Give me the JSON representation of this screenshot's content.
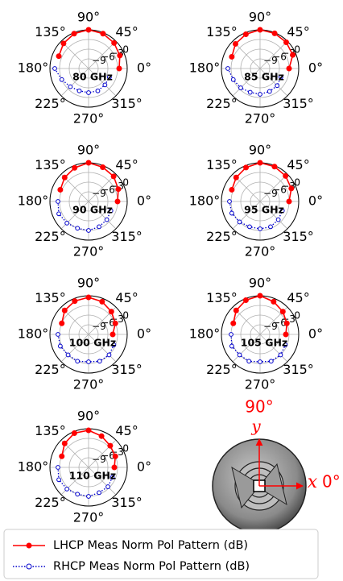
{
  "chart_data": {
    "type": "polar",
    "rlim": [
      -12,
      0
    ],
    "rticks": [
      {
        "value": -9,
        "label": "−9"
      },
      {
        "value": -6,
        "label": "−6"
      },
      {
        "value": -3,
        "label": "−3"
      },
      0
    ],
    "thetaticks": [
      {
        "value": 0,
        "label": "0°"
      },
      {
        "value": 45,
        "label": "45°"
      },
      {
        "value": 90,
        "label": "90°"
      },
      {
        "value": 135,
        "label": "135°"
      },
      {
        "value": 180,
        "label": "180°"
      },
      {
        "value": 225,
        "label": "225°"
      },
      {
        "value": 270,
        "label": "270°"
      },
      {
        "value": 315,
        "label": "315°"
      }
    ],
    "grid": true,
    "series": [
      {
        "name": "LHCP Meas Norm Pol Pattern (dB)",
        "color": "#ff0000",
        "linestyle": "solid",
        "marker": "filled",
        "theta": [
          0,
          22.5,
          45,
          67.5,
          90,
          112.5,
          135,
          157.5
        ]
      },
      {
        "name": "RHCP Meas Norm Pol Pattern (dB)",
        "color": "#0000cc",
        "linestyle": "dotted",
        "marker": "hollow",
        "theta": [
          180,
          202.5,
          225,
          247.5,
          270,
          292.5,
          315,
          337.5
        ]
      }
    ],
    "panels": [
      {
        "label": "80 GHz",
        "series": [
          {
            "values": [
              -2.5,
              -1.5,
              -0.8,
              -0.3,
              0,
              -0.3,
              -1,
              -2
            ]
          },
          {
            "values": [
              -1.5,
              -3,
              -4,
              -4.5,
              -4.5,
              -4.5,
              -4.8,
              -5
            ]
          }
        ]
      },
      {
        "label": "85 GHz",
        "series": [
          {
            "values": [
              -3,
              -1,
              -0.5,
              -0.2,
              0,
              -0.5,
              -1.2,
              -2.5
            ]
          },
          {
            "values": [
              -2,
              -3,
              -3.5,
              -4,
              -4,
              -4.3,
              -4.5,
              -5
            ]
          }
        ]
      },
      {
        "label": "90 GHz",
        "series": [
          {
            "values": [
              -3,
              -2,
              -1,
              -0.5,
              0,
              -0.7,
              -1.5,
              -2.5
            ]
          },
          {
            "values": [
              -2.5,
              -2,
              -2.5,
              -3,
              -3,
              -3.5,
              -4,
              -4.5
            ]
          }
        ]
      },
      {
        "label": "95 GHz",
        "series": [
          {
            "values": [
              -3,
              -1.5,
              -0.8,
              -0.3,
              0,
              -0.6,
              -1.5,
              -2.5
            ]
          },
          {
            "values": [
              -2.5,
              -2.5,
              -3,
              -3.5,
              -3.5,
              -3.5,
              -4,
              -4.5
            ]
          }
        ]
      },
      {
        "label": "100 GHz",
        "series": [
          {
            "values": [
              -4.5,
              -3,
              -2,
              -1,
              -0.5,
              -0.8,
              -1.5,
              -3
            ]
          },
          {
            "values": [
              -2.5,
              -2.5,
              -3,
              -3,
              -3.5,
              -3,
              -3,
              -3.5
            ]
          }
        ]
      },
      {
        "label": "105 GHz",
        "series": [
          {
            "values": [
              -4,
              -3,
              -2,
              -1,
              0,
              -0.5,
              -1.5,
              -3
            ]
          },
          {
            "values": [
              -3,
              -2.5,
              -3,
              -3,
              -3.5,
              -3,
              -3,
              -3.5
            ]
          }
        ]
      },
      {
        "label": "110 GHz",
        "series": [
          {
            "values": [
              -4,
              -3,
              -2.5,
              -1.5,
              -0.5,
              -0.5,
              -1.5,
              -3
            ]
          },
          {
            "values": [
              -2.5,
              -2,
              -2.5,
              -3,
              -3,
              -3.5,
              -3.5,
              -4
            ]
          }
        ]
      }
    ]
  },
  "inset": {
    "y_label": "y",
    "angle_90": "90°",
    "x_label": "x",
    "angle_0": "0°"
  }
}
